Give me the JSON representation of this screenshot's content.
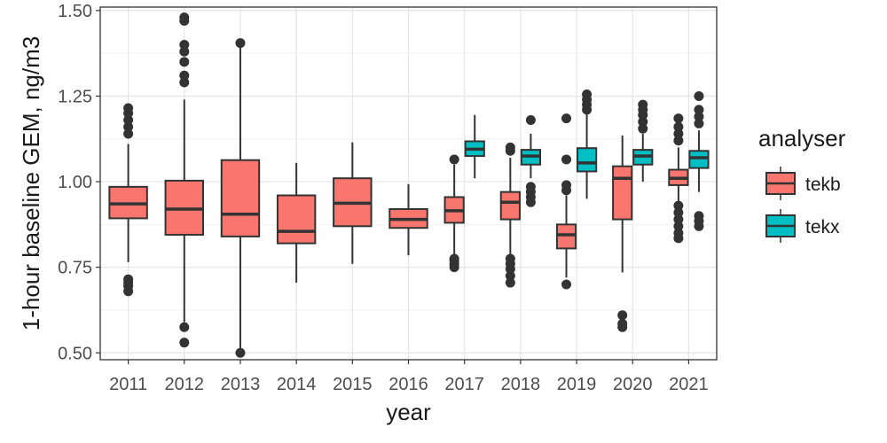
{
  "chart_data": {
    "type": "boxplot",
    "xlabel": "year",
    "ylabel": "1-hour baseline GEM, ng/m3",
    "categories": [
      "2011",
      "2012",
      "2013",
      "2014",
      "2015",
      "2016",
      "2017",
      "2018",
      "2019",
      "2020",
      "2021"
    ],
    "yticks": [
      "0.50",
      "0.75",
      "1.00",
      "1.25",
      "1.50"
    ],
    "ylim": [
      0.48,
      1.51
    ],
    "grid": true,
    "legend": {
      "title": "analyser",
      "position": "right",
      "entries": [
        {
          "name": "tekb",
          "color": "#F8766D"
        },
        {
          "name": "tekx",
          "color": "#00BFC4"
        }
      ]
    },
    "series": [
      {
        "name": "tekb",
        "color": "#F8766D",
        "boxes": [
          {
            "x": "2011",
            "min": 0.765,
            "q1": 0.893,
            "median": 0.935,
            "q3": 0.985,
            "max": 1.11,
            "outliers": [
              0.68,
              0.695,
              0.705,
              0.715,
              1.14,
              1.16,
              1.18,
              1.2,
              1.215
            ]
          },
          {
            "x": "2012",
            "min": 0.59,
            "q1": 0.845,
            "median": 0.92,
            "q3": 1.003,
            "max": 1.24,
            "outliers": [
              0.53,
              0.575,
              1.29,
              1.31,
              1.35,
              1.38,
              1.4,
              1.47,
              1.48
            ]
          },
          {
            "x": "2013",
            "min": 0.505,
            "q1": 0.84,
            "median": 0.905,
            "q3": 1.063,
            "max": 1.4,
            "outliers": [
              0.5,
              1.405
            ]
          },
          {
            "x": "2014",
            "min": 0.705,
            "q1": 0.82,
            "median": 0.855,
            "q3": 0.96,
            "max": 1.055,
            "outliers": []
          },
          {
            "x": "2015",
            "min": 0.76,
            "q1": 0.87,
            "median": 0.937,
            "q3": 1.01,
            "max": 1.115,
            "outliers": []
          },
          {
            "x": "2016",
            "min": 0.785,
            "q1": 0.865,
            "median": 0.89,
            "q3": 0.92,
            "max": 0.993,
            "outliers": []
          },
          {
            "x": "2017",
            "min": 0.78,
            "q1": 0.88,
            "median": 0.915,
            "q3": 0.955,
            "max": 1.05,
            "outliers": [
              0.75,
              0.76,
              0.77,
              0.775,
              1.065
            ]
          },
          {
            "x": "2018",
            "min": 0.785,
            "q1": 0.89,
            "median": 0.94,
            "q3": 0.97,
            "max": 1.07,
            "outliers": [
              0.705,
              0.725,
              0.745,
              0.76,
              0.775,
              1.09,
              1.1
            ]
          },
          {
            "x": "2019",
            "min": 0.72,
            "q1": 0.805,
            "median": 0.845,
            "q3": 0.875,
            "max": 0.96,
            "outliers": [
              0.7,
              0.975,
              0.99,
              1.065,
              1.185
            ]
          },
          {
            "x": "2020",
            "min": 0.735,
            "q1": 0.89,
            "median": 1.01,
            "q3": 1.045,
            "max": 1.135,
            "outliers": [
              0.575,
              0.585,
              0.61
            ]
          },
          {
            "x": "2021",
            "min": 0.94,
            "q1": 0.99,
            "median": 1.01,
            "q3": 1.035,
            "max": 1.1,
            "outliers": [
              0.835,
              0.85,
              0.87,
              0.89,
              0.91,
              0.93,
              1.12,
              1.14,
              1.16,
              1.185
            ]
          }
        ]
      },
      {
        "name": "tekx",
        "color": "#00BFC4",
        "boxes": [
          {
            "x": "2017",
            "min": 1.01,
            "q1": 1.075,
            "median": 1.095,
            "q3": 1.118,
            "max": 1.195,
            "outliers": []
          },
          {
            "x": "2018",
            "min": 1.01,
            "q1": 1.05,
            "median": 1.075,
            "q3": 1.093,
            "max": 1.14,
            "outliers": [
              0.94,
              0.955,
              0.97,
              0.985,
              1.18
            ]
          },
          {
            "x": "2019",
            "min": 0.95,
            "q1": 1.03,
            "median": 1.055,
            "q3": 1.098,
            "max": 1.2,
            "outliers": [
              1.21,
              1.225,
              1.24,
              1.255
            ]
          },
          {
            "x": "2020",
            "min": 1.0,
            "q1": 1.05,
            "median": 1.075,
            "q3": 1.093,
            "max": 1.14,
            "outliers": [
              1.155,
              1.175,
              1.195,
              1.21,
              1.225
            ]
          },
          {
            "x": "2021",
            "min": 0.97,
            "q1": 1.04,
            "median": 1.07,
            "q3": 1.09,
            "max": 1.15,
            "outliers": [
              0.87,
              0.885,
              0.9,
              1.17,
              1.19,
              1.21,
              1.25
            ]
          }
        ]
      }
    ]
  }
}
